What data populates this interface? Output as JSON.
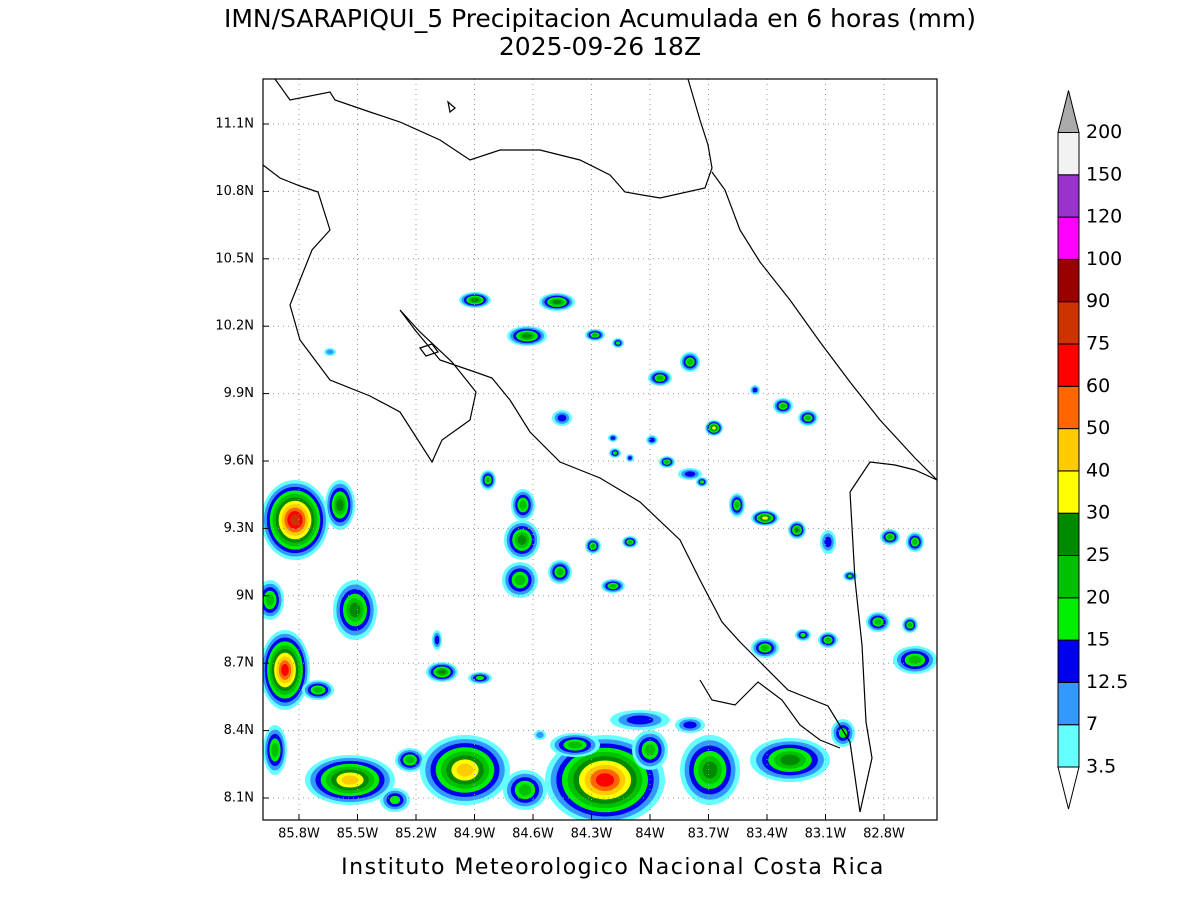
{
  "header": {
    "title": "IMN/SARAPIQUI_5 Precipitacion Acumulada en 6 horas (mm)",
    "subtitle": "2025-09-26 18Z"
  },
  "map": {
    "lon_labels": [
      "85.8W",
      "85.5W",
      "85.2W",
      "84.9W",
      "84.6W",
      "84.3W",
      "84W",
      "83.7W",
      "83.4W",
      "83.1W",
      "82.8W"
    ],
    "lat_labels": [
      "11.1N",
      "10.8N",
      "10.5N",
      "10.2N",
      "9.9N",
      "9.6N",
      "9.3N",
      "9N",
      "8.7N",
      "8.4N",
      "8.1N"
    ]
  },
  "legend": {
    "levels": [
      "3.5",
      "7",
      "12.5",
      "15",
      "20",
      "25",
      "30",
      "40",
      "50",
      "60",
      "75",
      "90",
      "100",
      "120",
      "150",
      "200"
    ],
    "colors": [
      "#66ffff",
      "#3399ff",
      "#0000ee",
      "#00ee00",
      "#00c000",
      "#008a00",
      "#ffff00",
      "#ffcc00",
      "#ff6600",
      "#ff0000",
      "#cc3300",
      "#990000",
      "#ff00ff",
      "#9933cc",
      "#f2f2f2"
    ],
    "under_color": "#ffffff",
    "over_color": "#aaaaaa"
  },
  "footer": {
    "credit": "Instituto Meteorologico Nacional Costa Rica"
  }
}
